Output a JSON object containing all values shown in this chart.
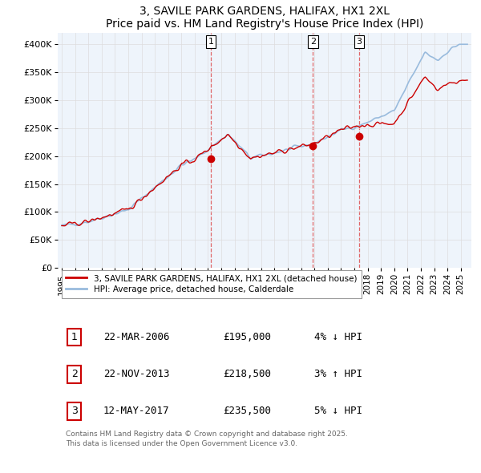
{
  "title": "3, SAVILE PARK GARDENS, HALIFAX, HX1 2XL",
  "subtitle": "Price paid vs. HM Land Registry's House Price Index (HPI)",
  "sale_dates_decimal": [
    2006.22,
    2013.895,
    2017.37
  ],
  "sale_prices": [
    195000,
    218500,
    235500
  ],
  "sale_labels": [
    "1",
    "2",
    "3"
  ],
  "ylim": [
    0,
    420000
  ],
  "yticks": [
    0,
    50000,
    100000,
    150000,
    200000,
    250000,
    300000,
    350000,
    400000
  ],
  "ytick_labels": [
    "£0",
    "£50K",
    "£100K",
    "£150K",
    "£200K",
    "£250K",
    "£300K",
    "£350K",
    "£400K"
  ],
  "red_line_color": "#cc0000",
  "blue_line_color": "#99bbdd",
  "dot_color": "#cc0000",
  "grid_color": "#dddddd",
  "vline_color": "#dd4444",
  "background_color": "#ffffff",
  "plot_bg_color": "#eef4fb",
  "legend_label_red": "3, SAVILE PARK GARDENS, HALIFAX, HX1 2XL (detached house)",
  "legend_label_blue": "HPI: Average price, detached house, Calderdale",
  "table_entries": [
    {
      "label": "1",
      "date": "22-MAR-2006",
      "price": "£195,000",
      "pct": "4% ↓ HPI"
    },
    {
      "label": "2",
      "date": "22-NOV-2013",
      "price": "£218,500",
      "pct": "3% ↑ HPI"
    },
    {
      "label": "3",
      "date": "12-MAY-2017",
      "price": "£235,500",
      "pct": "5% ↓ HPI"
    }
  ],
  "footer": "Contains HM Land Registry data © Crown copyright and database right 2025.\nThis data is licensed under the Open Government Licence v3.0.",
  "x_start_year": 1995,
  "x_end_year": 2025
}
